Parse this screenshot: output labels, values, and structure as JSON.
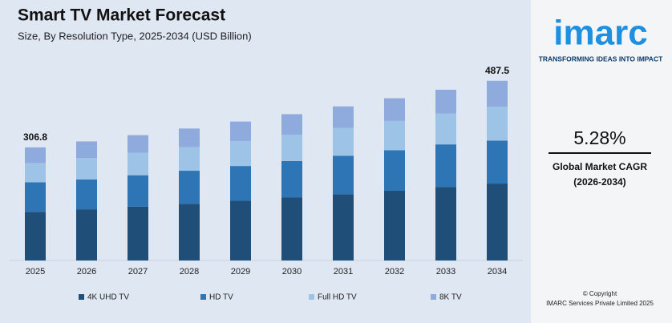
{
  "chart_data": {
    "type": "stacked_bar",
    "title": "Smart TV Market Forecast",
    "subtitle": "Size, By Resolution Type, 2025-2034 (USD Billion)",
    "categories": [
      "2025",
      "2026",
      "2027",
      "2028",
      "2029",
      "2030",
      "2031",
      "2032",
      "2033",
      "2034"
    ],
    "series": [
      {
        "name": "4K UHD TV",
        "color": "#1f4e79",
        "values": [
          132.0,
          138.9,
          146.2,
          153.9,
          162.1,
          170.6,
          179.7,
          189.2,
          199.1,
          208.6
        ]
      },
      {
        "name": "HD TV",
        "color": "#2e75b6",
        "values": [
          80.2,
          80.8,
          85.0,
          89.5,
          94.2,
          99.2,
          104.5,
          110.0,
          115.8,
          116.5
        ]
      },
      {
        "name": "Full HD TV",
        "color": "#9dc3e6",
        "values": [
          52.1,
          58.1,
          61.2,
          64.4,
          67.8,
          71.4,
          75.2,
          79.2,
          83.4,
          92.2
        ]
      },
      {
        "name": "8K TV",
        "color": "#8faadc",
        "values": [
          42.5,
          45.2,
          47.6,
          50.1,
          52.8,
          55.6,
          58.5,
          61.6,
          64.8,
          70.2
        ]
      }
    ],
    "totals": [
      306.8,
      null,
      null,
      null,
      null,
      null,
      null,
      null,
      null,
      487.5
    ],
    "ylim": [
      0,
      500
    ],
    "legend": "bottom"
  },
  "panel": {
    "logo": "imarc",
    "tagline": "TRANSFORMING IDEAS INTO IMPACT",
    "cagr": "5.28%",
    "cagr_label": "Global Market CAGR",
    "cagr_period": "(2026-2034)",
    "copyright": "© Copyright",
    "company": "IMARC Services Private Limited 2025"
  }
}
